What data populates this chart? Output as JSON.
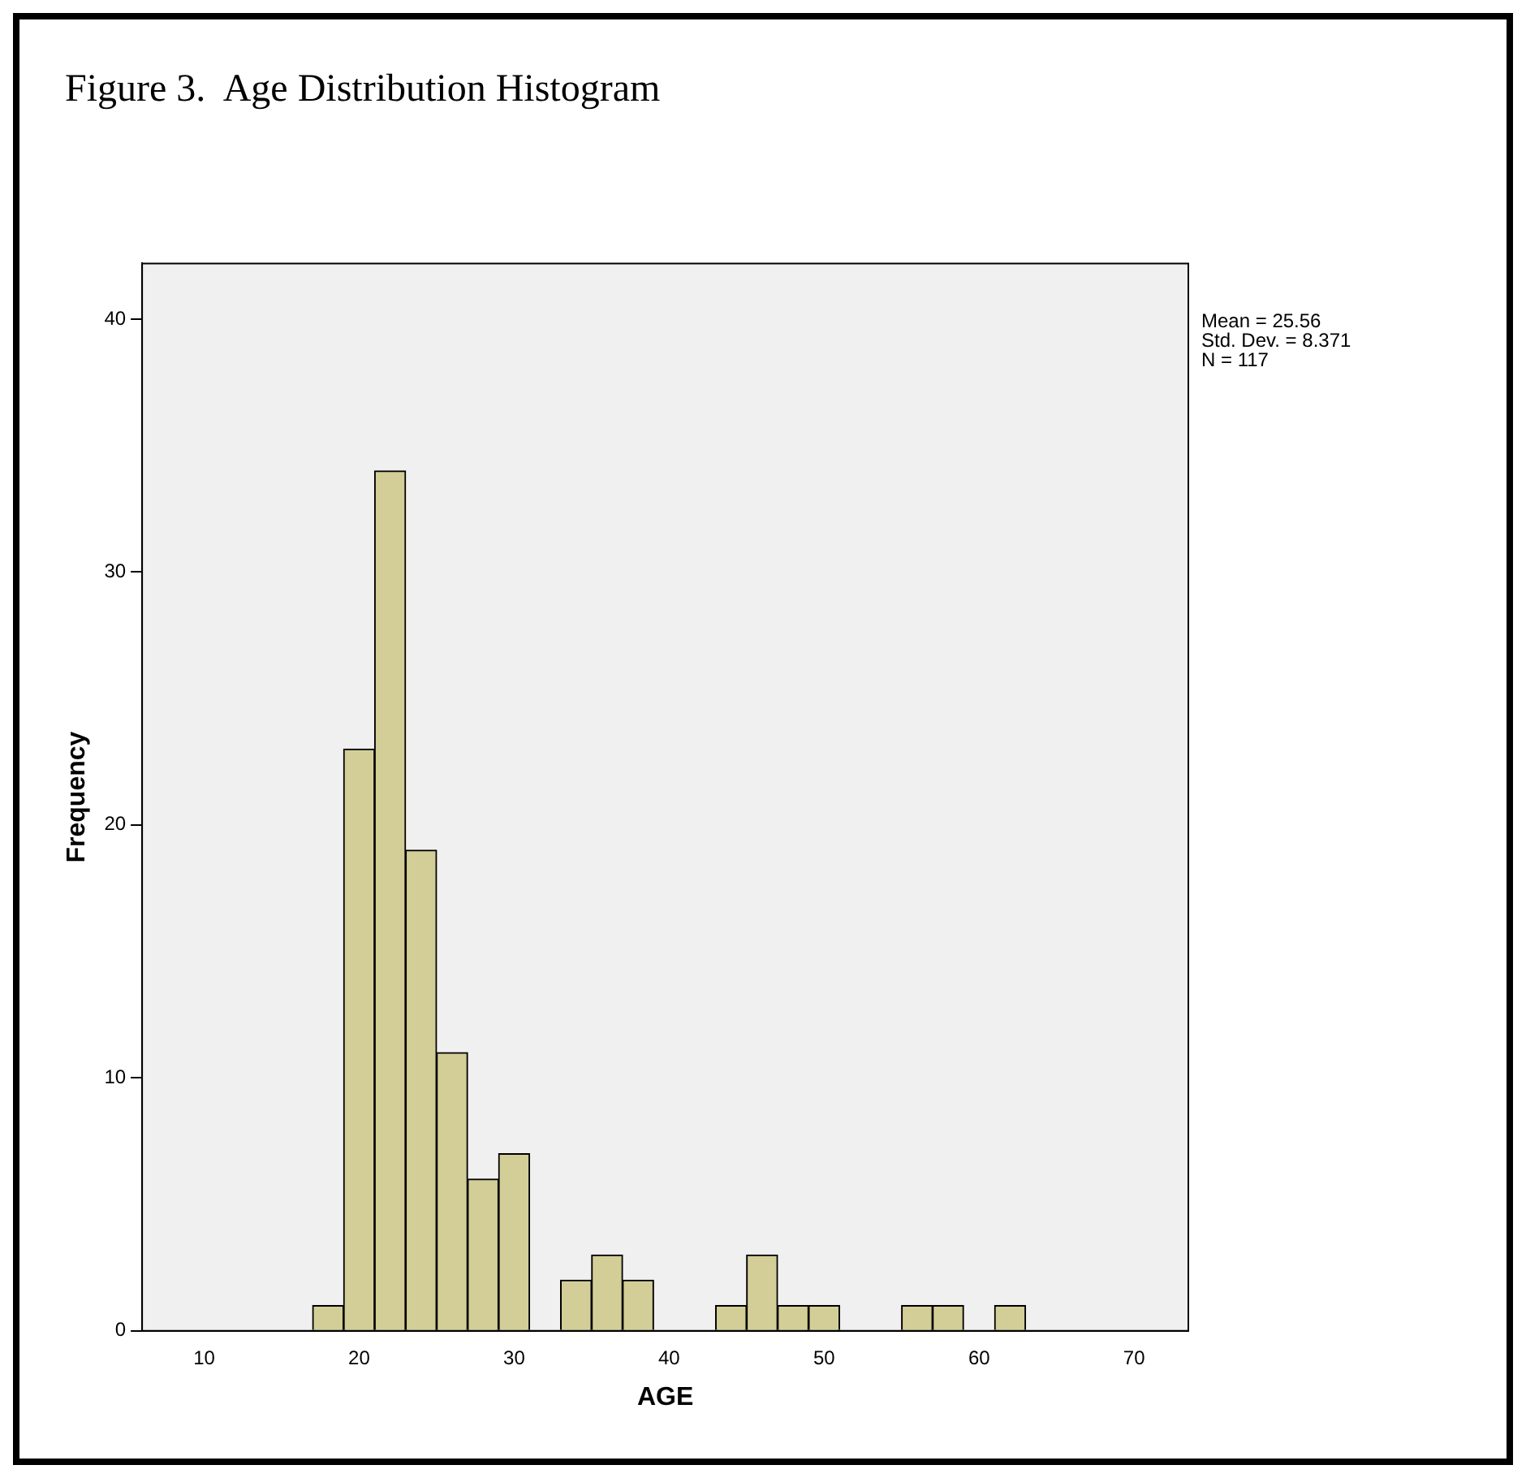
{
  "chart_data": {
    "type": "histogram",
    "title": "Figure 3.  Age Distribution Histogram",
    "xlabel": "AGE",
    "ylabel": "Frequency",
    "bins": [
      17,
      19,
      21,
      23,
      25,
      27,
      29,
      31,
      33,
      35,
      37,
      39,
      41,
      43,
      45,
      47,
      49,
      51,
      53,
      55,
      57,
      59,
      61,
      63
    ],
    "values": [
      1,
      23,
      34,
      19,
      11,
      6,
      7,
      0,
      2,
      3,
      2,
      0,
      0,
      1,
      3,
      1,
      1,
      0,
      0,
      1,
      1,
      0,
      1
    ],
    "color": "#d3ce97",
    "xlim": [
      6,
      73.5
    ],
    "xticks": [
      10,
      20,
      30,
      40,
      50,
      60,
      70
    ],
    "ylim": [
      0,
      42.2
    ],
    "yticks": [
      0,
      10,
      20,
      30,
      40
    ],
    "grid": false,
    "legend": false,
    "annotations": [
      "Mean = 25.56",
      "Std. Dev. = 8.371",
      "N = 117"
    ]
  }
}
